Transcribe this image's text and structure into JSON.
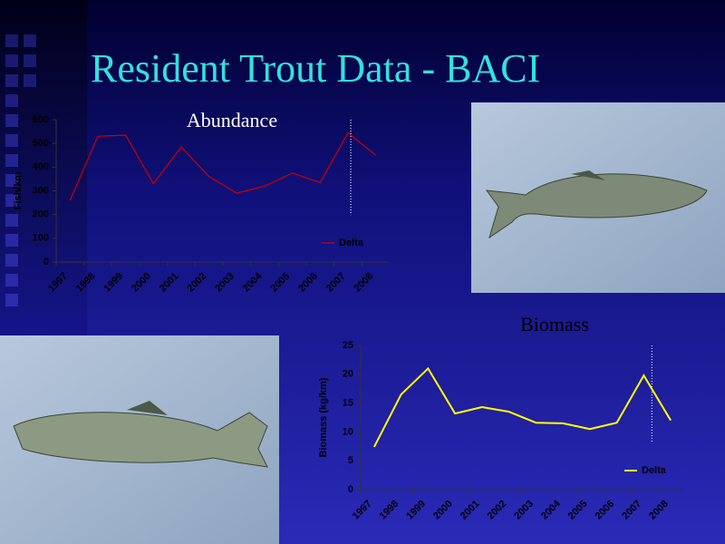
{
  "slide": {
    "title": "Resident Trout Data - BACI"
  },
  "chart_data": [
    {
      "type": "line",
      "title": "Abundance",
      "y_label": "Fish/km",
      "categories": [
        "1997",
        "1998",
        "1999",
        "2000",
        "2001",
        "2002",
        "2003",
        "2004",
        "2005",
        "2006",
        "2007",
        "2008"
      ],
      "series": [
        {
          "name": "Delta",
          "color": "#cc0000",
          "values": [
            260,
            530,
            535,
            330,
            485,
            360,
            290,
            320,
            375,
            335,
            545,
            450
          ]
        }
      ],
      "ylim": [
        0,
        600
      ],
      "yticks": [
        0,
        100,
        200,
        300,
        400,
        500,
        600
      ],
      "legend": "lower right"
    },
    {
      "type": "line",
      "title": "Biomass",
      "y_label": "Biomass (kg/km)",
      "categories": [
        "1997",
        "1998",
        "1999",
        "2000",
        "2001",
        "2002",
        "2003",
        "2004",
        "2005",
        "2006",
        "2007",
        "2008"
      ],
      "series": [
        {
          "name": "Delta",
          "color": "#ffff00",
          "values": [
            7.4,
            16.5,
            21,
            13.2,
            14.3,
            13.5,
            11.6,
            11.5,
            10.5,
            11.6,
            19.8,
            12
          ]
        }
      ],
      "ylim": [
        0,
        25
      ],
      "yticks": [
        0,
        5,
        10,
        15,
        20,
        25
      ],
      "legend": "lower right"
    }
  ]
}
